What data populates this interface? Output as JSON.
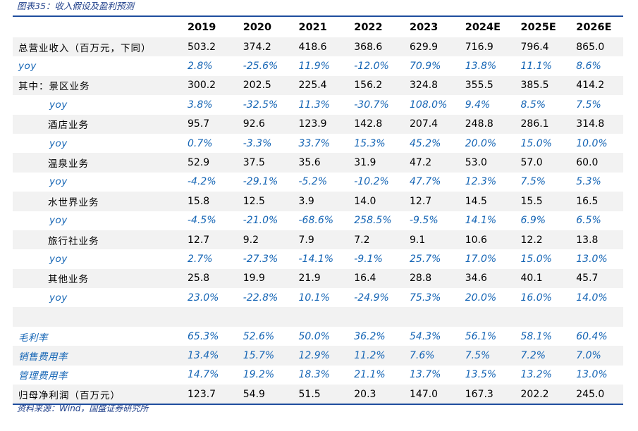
{
  "caption": "图表35：收入假设及盈利预测",
  "columns": [
    "2019",
    "2020",
    "2021",
    "2022",
    "2023",
    "2024E",
    "2025E",
    "2026E"
  ],
  "rows": [
    {
      "label": "总营业收入（百万元，下同）",
      "indent": false,
      "blue": false,
      "shaded": true,
      "values": [
        "503.2",
        "374.2",
        "418.6",
        "368.6",
        "629.9",
        "716.9",
        "796.4",
        "865.0"
      ]
    },
    {
      "label": "yoy",
      "indent": false,
      "blue": true,
      "shaded": false,
      "values": [
        "2.8%",
        "-25.6%",
        "11.9%",
        "-12.0%",
        "70.9%",
        "13.8%",
        "11.1%",
        "8.6%"
      ]
    },
    {
      "label": "其中：景区业务",
      "indent": false,
      "blue": false,
      "shaded": true,
      "values": [
        "300.2",
        "202.5",
        "225.4",
        "156.2",
        "324.8",
        "355.5",
        "385.5",
        "414.2"
      ]
    },
    {
      "label": "yoy",
      "indent": true,
      "blue": true,
      "shaded": false,
      "values": [
        "3.8%",
        "-32.5%",
        "11.3%",
        "-30.7%",
        "108.0%",
        "9.4%",
        "8.5%",
        "7.5%"
      ]
    },
    {
      "label": "酒店业务",
      "indent": true,
      "blue": false,
      "shaded": true,
      "values": [
        "95.7",
        "92.6",
        "123.9",
        "142.8",
        "207.4",
        "248.8",
        "286.1",
        "314.8"
      ]
    },
    {
      "label": "yoy",
      "indent": true,
      "blue": true,
      "shaded": false,
      "values": [
        "0.7%",
        "-3.3%",
        "33.7%",
        "15.3%",
        "45.2%",
        "20.0%",
        "15.0%",
        "10.0%"
      ]
    },
    {
      "label": "温泉业务",
      "indent": true,
      "blue": false,
      "shaded": true,
      "values": [
        "52.9",
        "37.5",
        "35.6",
        "31.9",
        "47.2",
        "53.0",
        "57.0",
        "60.0"
      ]
    },
    {
      "label": "yoy",
      "indent": true,
      "blue": true,
      "shaded": false,
      "values": [
        "-4.2%",
        "-29.1%",
        "-5.2%",
        "-10.2%",
        "47.7%",
        "12.3%",
        "7.5%",
        "5.3%"
      ]
    },
    {
      "label": "水世界业务",
      "indent": true,
      "blue": false,
      "shaded": true,
      "values": [
        "15.8",
        "12.5",
        "3.9",
        "14.0",
        "12.7",
        "14.5",
        "15.5",
        "16.5"
      ]
    },
    {
      "label": "yoy",
      "indent": true,
      "blue": true,
      "shaded": false,
      "values": [
        "-4.5%",
        "-21.0%",
        "-68.6%",
        "258.5%",
        "-9.5%",
        "14.1%",
        "6.9%",
        "6.5%"
      ]
    },
    {
      "label": "旅行社业务",
      "indent": true,
      "blue": false,
      "shaded": true,
      "values": [
        "12.7",
        "9.2",
        "7.9",
        "7.2",
        "9.1",
        "10.6",
        "12.2",
        "13.8"
      ]
    },
    {
      "label": "yoy",
      "indent": true,
      "blue": true,
      "shaded": false,
      "values": [
        "2.7%",
        "-27.3%",
        "-14.1%",
        "-9.1%",
        "25.7%",
        "17.0%",
        "15.0%",
        "13.0%"
      ]
    },
    {
      "label": "其他业务",
      "indent": true,
      "blue": false,
      "shaded": true,
      "values": [
        "25.8",
        "19.9",
        "21.9",
        "16.4",
        "28.8",
        "34.6",
        "40.1",
        "45.7"
      ]
    },
    {
      "label": "yoy",
      "indent": true,
      "blue": true,
      "shaded": false,
      "values": [
        "23.0%",
        "-22.8%",
        "10.1%",
        "-24.9%",
        "75.3%",
        "20.0%",
        "16.0%",
        "14.0%"
      ]
    },
    {
      "label": "",
      "indent": false,
      "blue": false,
      "shaded": true,
      "values": [
        "",
        "",
        "",
        "",
        "",
        "",
        "",
        ""
      ]
    },
    {
      "label": "毛利率",
      "indent": false,
      "blue": true,
      "shaded": false,
      "values": [
        "65.3%",
        "52.6%",
        "50.0%",
        "36.2%",
        "54.3%",
        "56.1%",
        "58.1%",
        "60.4%"
      ]
    },
    {
      "label": "销售费用率",
      "indent": false,
      "blue": true,
      "shaded": true,
      "values": [
        "13.4%",
        "15.7%",
        "12.9%",
        "11.2%",
        "7.6%",
        "7.5%",
        "7.2%",
        "7.0%"
      ]
    },
    {
      "label": "管理费用率",
      "indent": false,
      "blue": true,
      "shaded": false,
      "values": [
        "14.7%",
        "19.2%",
        "18.3%",
        "21.1%",
        "13.7%",
        "13.5%",
        "13.2%",
        "13.0%"
      ]
    },
    {
      "label": "归母净利润（百万元）",
      "indent": false,
      "blue": false,
      "shaded": true,
      "values": [
        "123.7",
        "54.9",
        "51.5",
        "20.3",
        "147.0",
        "167.3",
        "202.2",
        "245.0"
      ]
    }
  ],
  "source": "资料来源：Wind，国盛证券研究所",
  "colors": {
    "rule": "#1f4e9e",
    "blue_text": "#1565b5",
    "shade": "#f2f2f2",
    "caption": "#1f3f8a"
  }
}
